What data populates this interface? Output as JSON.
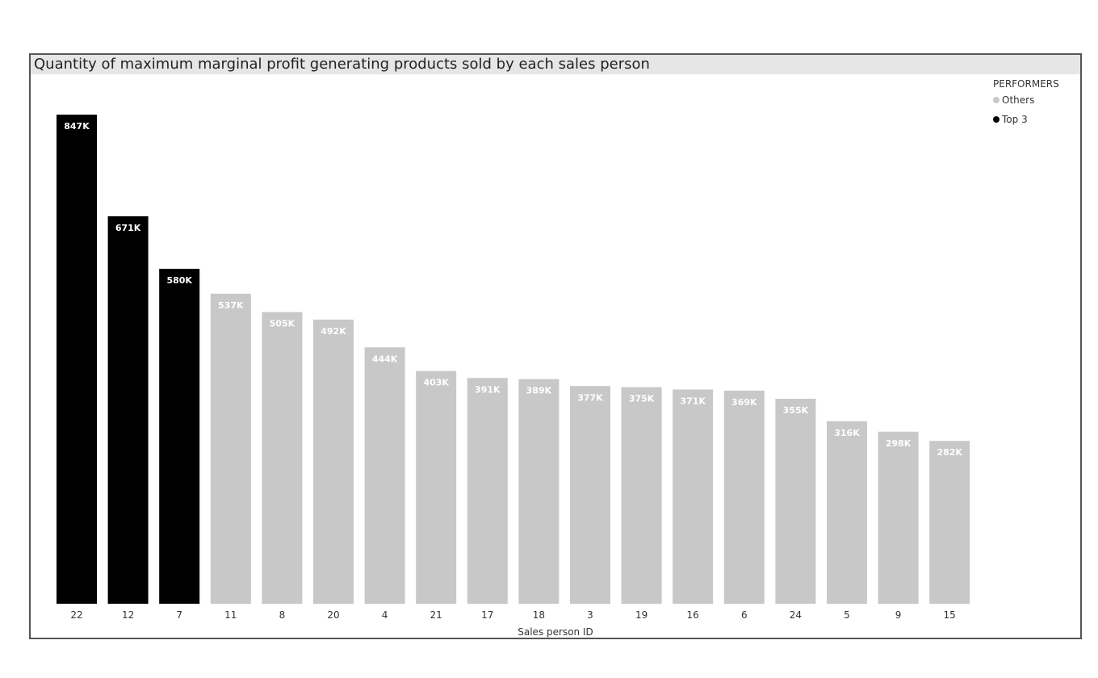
{
  "chart_data": {
    "type": "bar",
    "title": "Quantity of maximum marginal profit generating products sold by each sales person",
    "xlabel": "Sales person ID",
    "ylabel": "",
    "ylim": [
      0,
      847000
    ],
    "grid": false,
    "legend": {
      "title": "PERFORMERS",
      "placement": "top-right",
      "items": [
        {
          "label": "Others",
          "color": "#c8c8c8"
        },
        {
          "label": "Top 3",
          "color": "#000000"
        }
      ]
    },
    "categories": [
      "22",
      "12",
      "7",
      "11",
      "8",
      "20",
      "4",
      "21",
      "17",
      "18",
      "3",
      "19",
      "16",
      "6",
      "24",
      "5",
      "9",
      "15"
    ],
    "values": [
      847000,
      671000,
      580000,
      537000,
      505000,
      492000,
      444000,
      403000,
      391000,
      389000,
      377000,
      375000,
      371000,
      369000,
      355000,
      316000,
      298000,
      282000
    ],
    "data_labels": [
      "847K",
      "671K",
      "580K",
      "537K",
      "505K",
      "492K",
      "444K",
      "403K",
      "391K",
      "389K",
      "377K",
      "375K",
      "371K",
      "369K",
      "355K",
      "316K",
      "298K",
      "282K"
    ],
    "group": [
      "Top 3",
      "Top 3",
      "Top 3",
      "Others",
      "Others",
      "Others",
      "Others",
      "Others",
      "Others",
      "Others",
      "Others",
      "Others",
      "Others",
      "Others",
      "Others",
      "Others",
      "Others",
      "Others"
    ]
  }
}
